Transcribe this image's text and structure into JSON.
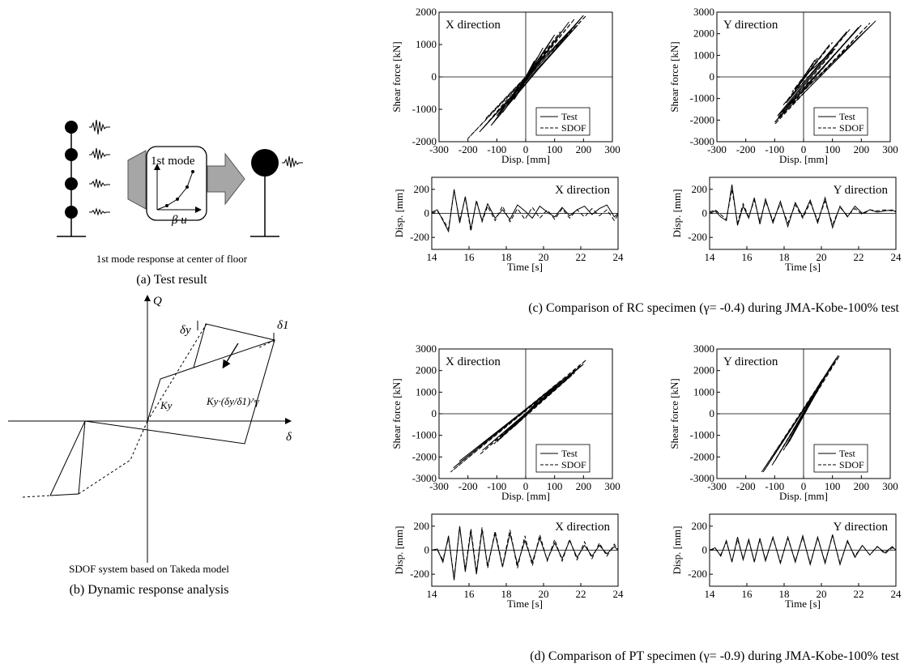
{
  "panel_a": {
    "box_label": "1st mode",
    "axis_label": "β u",
    "subcaption": "1st mode response at center of floor",
    "caption": "(a) Test result"
  },
  "panel_b": {
    "q_label": "Q",
    "delta_label": "δ",
    "delta_y_label": "δy",
    "delta_1_label": "δ1",
    "ky_label": "Ky",
    "ky_formula_label": "Ky·(δy/δ1)^γ",
    "subcaption": "SDOF system based on Takeda model",
    "caption": "(b) Dynamic response analysis"
  },
  "panel_c": {
    "caption": "(c) Comparison of RC specimen (γ= -0.4) during JMA-Kobe-100% test"
  },
  "panel_d": {
    "caption": "(d) Comparison of PT specimen (γ= -0.9) during JMA-Kobe-100% test"
  },
  "legend": {
    "test": "Test",
    "sdof": "SDOF"
  },
  "chart_data": [
    {
      "id": "c_hyst_x",
      "type": "line",
      "direction_label": "X direction",
      "xlabel": "Disp. [mm]",
      "ylabel": "Shear force [kN]",
      "xlim": [
        -300,
        300
      ],
      "ylim": [
        -2000,
        2000
      ],
      "xticks": [
        -300,
        -200,
        -100,
        0,
        100,
        200,
        300
      ],
      "yticks": [
        -2000,
        -1000,
        0,
        1000,
        2000
      ],
      "series": [
        {
          "name": "Test",
          "x": [
            0,
            30,
            -20,
            60,
            -40,
            100,
            -80,
            150,
            -120,
            200,
            -160,
            180,
            -100,
            0
          ],
          "y": [
            0,
            500,
            -400,
            900,
            -700,
            1300,
            -1100,
            1700,
            -1500,
            1900,
            -1700,
            1600,
            -1200,
            0
          ]
        },
        {
          "name": "SDOF",
          "x": [
            0,
            40,
            -30,
            80,
            -60,
            120,
            -100,
            170,
            -150,
            210,
            -200,
            160,
            -140,
            0
          ],
          "y": [
            0,
            600,
            -500,
            1000,
            -800,
            1400,
            -1200,
            1800,
            -1600,
            1900,
            -1900,
            1500,
            -1300,
            0
          ]
        }
      ]
    },
    {
      "id": "c_hyst_y",
      "type": "line",
      "direction_label": "Y direction",
      "xlabel": "Disp. [mm]",
      "ylabel": "Shear force [kN]",
      "xlim": [
        -300,
        300
      ],
      "ylim": [
        -3000,
        3000
      ],
      "xticks": [
        -300,
        -200,
        -100,
        0,
        100,
        200,
        300
      ],
      "yticks": [
        -3000,
        -2000,
        -1000,
        0,
        1000,
        2000,
        3000
      ],
      "series": [
        {
          "name": "Test",
          "x": [
            0,
            40,
            -30,
            90,
            -60,
            150,
            -90,
            250,
            -100,
            200,
            -80,
            100,
            0
          ],
          "y": [
            0,
            800,
            -600,
            1500,
            -1200,
            2100,
            -1800,
            2600,
            -2100,
            2400,
            -1700,
            1200,
            0
          ]
        },
        {
          "name": "SDOF",
          "x": [
            0,
            50,
            -40,
            100,
            -70,
            160,
            -90,
            230,
            -100,
            190,
            -80,
            110,
            0
          ],
          "y": [
            0,
            900,
            -700,
            1600,
            -1300,
            2200,
            -1900,
            2500,
            -2200,
            2300,
            -1800,
            1300,
            0
          ]
        }
      ]
    },
    {
      "id": "c_time_x",
      "type": "line",
      "direction_label": "X direction",
      "xlabel": "Time [s]",
      "ylabel": "Disp. [mm]",
      "xlim": [
        14,
        24
      ],
      "ylim": [
        -300,
        300
      ],
      "xticks": [
        14,
        16,
        18,
        20,
        22,
        24
      ],
      "yticks": [
        -200,
        0,
        200
      ],
      "series": [
        {
          "name": "Test",
          "x": [
            14,
            14.3,
            14.6,
            14.9,
            15.2,
            15.5,
            15.8,
            16.1,
            16.4,
            16.7,
            17.0,
            17.4,
            17.8,
            18.2,
            18.6,
            19.0,
            19.4,
            19.8,
            20.2,
            20.6,
            21.0,
            21.4,
            21.8,
            22.2,
            22.6,
            23.0,
            23.4,
            23.8,
            24
          ],
          "y": [
            10,
            30,
            -60,
            -150,
            200,
            -80,
            140,
            -130,
            100,
            -60,
            80,
            -40,
            30,
            -50,
            70,
            20,
            -40,
            60,
            10,
            -30,
            50,
            -20,
            30,
            60,
            -10,
            40,
            70,
            -30,
            0
          ]
        },
        {
          "name": "SDOF",
          "x": [
            14,
            14.3,
            14.6,
            14.9,
            15.2,
            15.5,
            15.8,
            16.1,
            16.4,
            16.7,
            17.0,
            17.4,
            17.8,
            18.2,
            18.6,
            19.0,
            19.4,
            19.8,
            20.2,
            20.6,
            21.0,
            21.4,
            21.8,
            22.2,
            22.6,
            23.0,
            23.4,
            23.8,
            24
          ],
          "y": [
            0,
            20,
            -50,
            -130,
            190,
            -60,
            130,
            -150,
            110,
            -70,
            60,
            -60,
            60,
            -70,
            40,
            -50,
            50,
            -40,
            30,
            -50,
            40,
            -40,
            30,
            -30,
            40,
            -20,
            30,
            -60,
            -10
          ]
        }
      ]
    },
    {
      "id": "c_time_y",
      "type": "line",
      "direction_label": "Y direction",
      "xlabel": "Time [s]",
      "ylabel": "Disp. [mm]",
      "xlim": [
        14,
        24
      ],
      "ylim": [
        -300,
        300
      ],
      "xticks": [
        14,
        16,
        18,
        20,
        22,
        24
      ],
      "yticks": [
        -200,
        0,
        200
      ],
      "series": [
        {
          "name": "Test",
          "x": [
            14,
            14.3,
            14.6,
            14.9,
            15.2,
            15.5,
            15.8,
            16.1,
            16.4,
            16.7,
            17.0,
            17.4,
            17.8,
            18.2,
            18.6,
            19.0,
            19.4,
            19.8,
            20.2,
            20.6,
            21.0,
            21.4,
            21.8,
            22.2,
            22.6,
            23.0,
            23.4,
            23.8,
            24
          ],
          "y": [
            0,
            20,
            -30,
            -60,
            240,
            -100,
            60,
            -40,
            130,
            -90,
            120,
            -80,
            100,
            -110,
            90,
            -30,
            110,
            -80,
            130,
            -120,
            60,
            -30,
            60,
            0,
            30,
            10,
            20,
            30,
            10
          ]
        },
        {
          "name": "SDOF",
          "x": [
            14,
            14.3,
            14.6,
            14.9,
            15.2,
            15.5,
            15.8,
            16.1,
            16.4,
            16.7,
            17.0,
            17.4,
            17.8,
            18.2,
            18.6,
            19.0,
            19.4,
            19.8,
            20.2,
            20.6,
            21.0,
            21.4,
            21.8,
            22.2,
            22.6,
            23.0,
            23.4,
            23.8,
            24
          ],
          "y": [
            10,
            30,
            -10,
            -50,
            200,
            -80,
            80,
            -30,
            110,
            -70,
            100,
            -60,
            80,
            -80,
            70,
            -40,
            90,
            -60,
            100,
            -90,
            50,
            -20,
            40,
            -10,
            30,
            20,
            30,
            20,
            20
          ]
        }
      ]
    },
    {
      "id": "d_hyst_x",
      "type": "line",
      "direction_label": "X direction",
      "xlabel": "Disp. [mm]",
      "ylabel": "Shear force [kN]",
      "xlim": [
        -300,
        300
      ],
      "ylim": [
        -3000,
        3000
      ],
      "xticks": [
        -300,
        -200,
        -100,
        0,
        100,
        200,
        300
      ],
      "yticks": [
        -3000,
        -2000,
        -1000,
        0,
        1000,
        2000,
        3000
      ],
      "series": [
        {
          "name": "Test",
          "x": [
            0,
            50,
            -40,
            100,
            -90,
            160,
            -150,
            200,
            -230,
            180,
            -250,
            120,
            -100,
            0
          ],
          "y": [
            0,
            700,
            -600,
            1200,
            -1100,
            1800,
            -1700,
            2300,
            -2200,
            2100,
            -2500,
            1500,
            -1300,
            0
          ]
        },
        {
          "name": "SDOF",
          "x": [
            0,
            60,
            -50,
            110,
            -100,
            170,
            -160,
            210,
            -240,
            190,
            -260,
            130,
            -110,
            0
          ],
          "y": [
            0,
            800,
            -700,
            1300,
            -1300,
            1900,
            -1900,
            2500,
            -2400,
            2200,
            -2700,
            1600,
            -1400,
            0
          ]
        }
      ]
    },
    {
      "id": "d_hyst_y",
      "type": "line",
      "direction_label": "Y direction",
      "xlabel": "Disp. [mm]",
      "ylabel": "Shear force [kN]",
      "xlim": [
        -300,
        300
      ],
      "ylim": [
        -3000,
        3000
      ],
      "xticks": [
        -300,
        -200,
        -100,
        0,
        100,
        200,
        300
      ],
      "yticks": [
        -3000,
        -2000,
        -1000,
        0,
        1000,
        2000,
        3000
      ],
      "series": [
        {
          "name": "Test",
          "x": [
            0,
            30,
            -30,
            60,
            -60,
            90,
            -100,
            120,
            -140,
            110,
            -130,
            70,
            -50,
            0
          ],
          "y": [
            0,
            800,
            -800,
            1500,
            -1500,
            2100,
            -2200,
            2700,
            -2700,
            2500,
            -2500,
            1600,
            -1300,
            0
          ]
        },
        {
          "name": "SDOF",
          "x": [
            0,
            35,
            -35,
            65,
            -70,
            95,
            -110,
            125,
            -145,
            115,
            -135,
            75,
            -55,
            0
          ],
          "y": [
            0,
            900,
            -900,
            1600,
            -1700,
            2200,
            -2400,
            2700,
            -2700,
            2600,
            -2600,
            1700,
            -1400,
            0
          ]
        }
      ]
    },
    {
      "id": "d_time_x",
      "type": "line",
      "direction_label": "X direction",
      "xlabel": "Time [s]",
      "ylabel": "Disp. [mm]",
      "xlim": [
        14,
        24
      ],
      "ylim": [
        -300,
        300
      ],
      "xticks": [
        14,
        16,
        18,
        20,
        22,
        24
      ],
      "yticks": [
        -200,
        0,
        200
      ],
      "series": [
        {
          "name": "Test",
          "x": [
            14,
            14.3,
            14.6,
            14.9,
            15.2,
            15.5,
            15.8,
            16.1,
            16.4,
            16.7,
            17.0,
            17.4,
            17.8,
            18.2,
            18.6,
            19.0,
            19.4,
            19.8,
            20.2,
            20.6,
            21.0,
            21.4,
            21.8,
            22.2,
            22.6,
            23.0,
            23.4,
            23.8,
            24
          ],
          "y": [
            0,
            10,
            -100,
            120,
            -250,
            200,
            -180,
            160,
            -200,
            170,
            -130,
            140,
            -140,
            140,
            -120,
            80,
            -100,
            100,
            -80,
            60,
            -70,
            80,
            -60,
            40,
            -50,
            40,
            -30,
            30,
            0
          ]
        },
        {
          "name": "SDOF",
          "x": [
            14,
            14.3,
            14.6,
            14.9,
            15.2,
            15.5,
            15.8,
            16.1,
            16.4,
            16.7,
            17.0,
            17.4,
            17.8,
            18.2,
            18.6,
            19.0,
            19.4,
            19.8,
            20.2,
            20.6,
            21.0,
            21.4,
            21.8,
            22.2,
            22.6,
            23.0,
            23.4,
            23.8,
            24
          ],
          "y": [
            0,
            0,
            -80,
            100,
            -230,
            190,
            -160,
            180,
            -180,
            190,
            -150,
            160,
            -130,
            170,
            -150,
            120,
            -130,
            130,
            -90,
            90,
            -90,
            90,
            -80,
            70,
            -70,
            60,
            -50,
            50,
            0
          ]
        }
      ]
    },
    {
      "id": "d_time_y",
      "type": "line",
      "direction_label": "Y direction",
      "xlabel": "Time [s]",
      "ylabel": "Disp. [mm]",
      "xlim": [
        14,
        24
      ],
      "ylim": [
        -300,
        300
      ],
      "xticks": [
        14,
        16,
        18,
        20,
        22,
        24
      ],
      "yticks": [
        -200,
        0,
        200
      ],
      "series": [
        {
          "name": "Test",
          "x": [
            14,
            14.3,
            14.6,
            14.9,
            15.2,
            15.5,
            15.8,
            16.1,
            16.4,
            16.7,
            17.0,
            17.4,
            17.8,
            18.2,
            18.6,
            19.0,
            19.4,
            19.8,
            20.2,
            20.6,
            21.0,
            21.4,
            21.8,
            22.2,
            22.6,
            23.0,
            23.4,
            23.8,
            24
          ],
          "y": [
            0,
            20,
            -50,
            80,
            -100,
            110,
            -80,
            90,
            -100,
            100,
            -90,
            110,
            -110,
            110,
            -100,
            120,
            -120,
            110,
            -110,
            130,
            -120,
            80,
            -60,
            40,
            -40,
            30,
            -20,
            30,
            0
          ]
        },
        {
          "name": "SDOF",
          "x": [
            14,
            14.3,
            14.6,
            14.9,
            15.2,
            15.5,
            15.8,
            16.1,
            16.4,
            16.7,
            17.0,
            17.4,
            17.8,
            18.2,
            18.6,
            19.0,
            19.4,
            19.8,
            20.2,
            20.6,
            21.0,
            21.4,
            21.8,
            22.2,
            22.6,
            23.0,
            23.4,
            23.8,
            24
          ],
          "y": [
            0,
            10,
            -40,
            70,
            -90,
            90,
            -70,
            80,
            -90,
            90,
            -80,
            100,
            -100,
            100,
            -90,
            110,
            -110,
            100,
            -100,
            120,
            -110,
            70,
            -50,
            40,
            -40,
            30,
            -30,
            20,
            10
          ]
        }
      ]
    }
  ]
}
